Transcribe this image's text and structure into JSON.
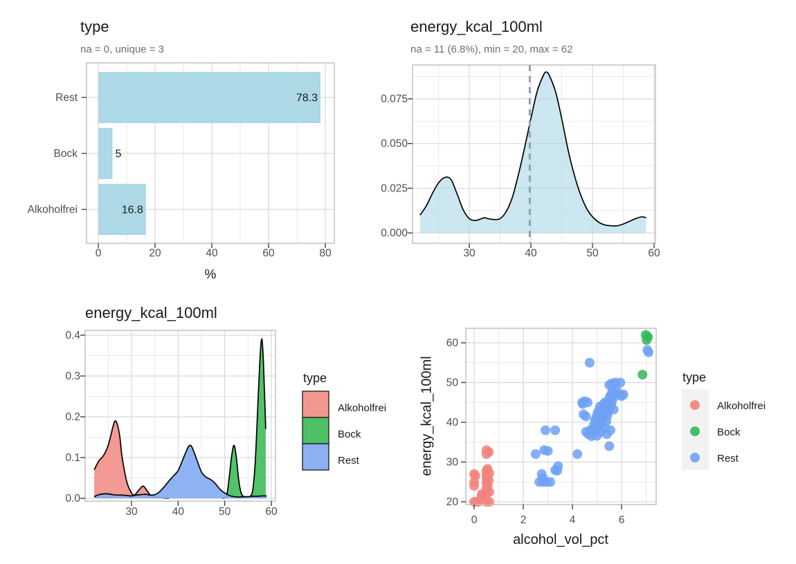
{
  "figure": {
    "background": "#ffffff",
    "style": {
      "panel_border": "#BDBDBD",
      "grid_major": "#D9D9D9",
      "grid_minor": "#E9E9E9",
      "tick_color": "#333333",
      "tick_label_color": "#4D4D4D",
      "title_color": "#1A1A1A",
      "subtitle_color": "#6E6E6E"
    }
  },
  "chart_data": [
    {
      "id": "type-bar",
      "type": "bar",
      "title": "type",
      "subtitle": "na = 0, unique = 3",
      "xlabel": "%",
      "categories": [
        "Rest",
        "Bock",
        "Alkoholfrei"
      ],
      "values": [
        78.3,
        5,
        16.8
      ],
      "value_labels": [
        "78.3",
        "5",
        "16.8"
      ],
      "x_ticks": [
        0,
        20,
        40,
        60,
        80
      ],
      "x_tick_labels": [
        "0",
        "20",
        "40",
        "60",
        "80"
      ],
      "x_minor": [
        10,
        30,
        50,
        70
      ],
      "xlim": [
        0,
        80
      ],
      "bar_color": "#ADD8E6",
      "grid": "on"
    },
    {
      "id": "energy-density",
      "type": "density",
      "title": "energy_kcal_100ml",
      "subtitle": "na = 11 (6.8%), min = 20, max = 62",
      "x_ticks": [
        30,
        40,
        50,
        60
      ],
      "x_tick_labels": [
        "30",
        "40",
        "50",
        "60"
      ],
      "x_minor": [
        25,
        35,
        45,
        55
      ],
      "y_ticks": [
        0,
        0.025,
        0.05,
        0.075
      ],
      "y_tick_labels": [
        "0.000",
        "0.025",
        "0.050",
        "0.075"
      ],
      "y_minor": [
        0.0125,
        0.0375,
        0.0625,
        0.0875
      ],
      "xlim": [
        21,
        60.5
      ],
      "ylim": [
        0,
        0.095
      ],
      "fill": "#ADD8E6",
      "fill_opacity": 0.62,
      "line_color": "#000000",
      "vline_x": 39.8,
      "vline_color": "#8A9BA8",
      "vline_style": "dashed",
      "grid": "on",
      "points": [
        [
          22,
          0.01
        ],
        [
          23,
          0.015
        ],
        [
          24,
          0.022
        ],
        [
          25,
          0.028
        ],
        [
          26,
          0.031
        ],
        [
          27,
          0.03
        ],
        [
          28,
          0.022
        ],
        [
          29,
          0.013
        ],
        [
          30,
          0.008
        ],
        [
          31,
          0.007
        ],
        [
          32,
          0.008
        ],
        [
          32.5,
          0.0085
        ],
        [
          33,
          0.008
        ],
        [
          34,
          0.0075
        ],
        [
          35,
          0.008
        ],
        [
          36,
          0.012
        ],
        [
          37,
          0.02
        ],
        [
          38,
          0.033
        ],
        [
          39,
          0.048
        ],
        [
          40,
          0.064
        ],
        [
          41,
          0.079
        ],
        [
          42,
          0.088
        ],
        [
          42.5,
          0.09
        ],
        [
          43,
          0.088
        ],
        [
          44,
          0.079
        ],
        [
          45,
          0.064
        ],
        [
          46,
          0.047
        ],
        [
          47,
          0.033
        ],
        [
          48,
          0.022
        ],
        [
          49,
          0.014
        ],
        [
          50,
          0.009
        ],
        [
          51,
          0.006
        ],
        [
          52,
          0.0045
        ],
        [
          53,
          0.004
        ],
        [
          54,
          0.004
        ],
        [
          55,
          0.005
        ],
        [
          56,
          0.0065
        ],
        [
          57,
          0.008
        ],
        [
          58,
          0.009
        ],
        [
          58.7,
          0.0085
        ]
      ]
    },
    {
      "id": "energy-density-by-type",
      "type": "density-multi",
      "title": "energy_kcal_100ml",
      "legend_title": "type",
      "x_ticks": [
        30,
        40,
        50,
        60
      ],
      "x_tick_labels": [
        "30",
        "40",
        "50",
        "60"
      ],
      "x_minor": [
        25,
        35,
        45,
        55
      ],
      "y_ticks": [
        0,
        0.1,
        0.2,
        0.3,
        0.4
      ],
      "y_tick_labels": [
        "0.0",
        "0.1",
        "0.2",
        "0.3",
        "0.4"
      ],
      "y_minor": [
        0.05,
        0.15,
        0.25,
        0.35
      ],
      "xlim": [
        21,
        60.5
      ],
      "ylim": [
        0,
        0.41
      ],
      "grid": "on",
      "series": [
        {
          "name": "Alkoholfrei",
          "fill": "#F1918A",
          "points": [
            [
              22,
              0.07
            ],
            [
              23,
              0.092
            ],
            [
              24,
              0.105
            ],
            [
              25,
              0.13
            ],
            [
              26,
              0.175
            ],
            [
              26.5,
              0.19
            ],
            [
              27,
              0.18
            ],
            [
              27.5,
              0.15
            ],
            [
              28,
              0.1
            ],
            [
              29,
              0.04
            ],
            [
              30,
              0.013
            ],
            [
              30.5,
              0.008
            ],
            [
              31,
              0.012
            ],
            [
              32,
              0.026
            ],
            [
              32.5,
              0.03
            ],
            [
              33,
              0.024
            ],
            [
              34,
              0.009
            ],
            [
              35,
              0.004
            ],
            [
              36,
              0.002
            ],
            [
              37,
              0.001
            ],
            [
              38,
              0
            ]
          ]
        },
        {
          "name": "Bock",
          "fill": "#43BD5E",
          "points": [
            [
              49.5,
              0
            ],
            [
              50,
              0.002
            ],
            [
              50.5,
              0.012
            ],
            [
              51,
              0.055
            ],
            [
              51.5,
              0.105
            ],
            [
              52,
              0.13
            ],
            [
              52.5,
              0.1
            ],
            [
              53,
              0.045
            ],
            [
              53.5,
              0.014
            ],
            [
              54,
              0.005
            ],
            [
              54.5,
              0.002
            ],
            [
              55,
              0.002
            ],
            [
              55.5,
              0.005
            ],
            [
              56,
              0.02
            ],
            [
              56.5,
              0.08
            ],
            [
              57,
              0.2
            ],
            [
              57.5,
              0.33
            ],
            [
              57.9,
              0.39
            ],
            [
              58.2,
              0.36
            ],
            [
              58.5,
              0.27
            ],
            [
              58.8,
              0.17
            ]
          ]
        },
        {
          "name": "Rest",
          "fill": "#86ACF1",
          "points": [
            [
              22,
              0.004
            ],
            [
              23,
              0.009
            ],
            [
              24,
              0.011
            ],
            [
              25,
              0.011
            ],
            [
              26,
              0.009
            ],
            [
              27,
              0.008
            ],
            [
              28,
              0.008
            ],
            [
              29,
              0.007
            ],
            [
              30,
              0.006
            ],
            [
              31,
              0.008
            ],
            [
              32,
              0.009
            ],
            [
              33,
              0.01
            ],
            [
              34,
              0.008
            ],
            [
              35,
              0.009
            ],
            [
              36,
              0.016
            ],
            [
              37,
              0.028
            ],
            [
              38,
              0.042
            ],
            [
              39,
              0.055
            ],
            [
              40,
              0.068
            ],
            [
              41,
              0.095
            ],
            [
              42,
              0.122
            ],
            [
              42.5,
              0.13
            ],
            [
              43,
              0.125
            ],
            [
              44,
              0.095
            ],
            [
              45,
              0.065
            ],
            [
              46,
              0.052
            ],
            [
              47,
              0.046
            ],
            [
              48,
              0.036
            ],
            [
              49,
              0.022
            ],
            [
              50,
              0.013
            ],
            [
              51,
              0.007
            ],
            [
              52,
              0.004
            ],
            [
              53,
              0.003
            ],
            [
              54,
              0.004
            ],
            [
              55,
              0.004
            ],
            [
              56,
              0.005
            ],
            [
              57,
              0.005
            ],
            [
              58,
              0.006
            ],
            [
              59,
              0.006
            ]
          ]
        }
      ]
    },
    {
      "id": "alcohol-energy-scatter",
      "type": "scatter",
      "xlabel": "alcohol_vol_pct",
      "ylabel": "energy_kcal_100ml",
      "legend_title": "type",
      "x_ticks": [
        0,
        2,
        4,
        6
      ],
      "x_tick_labels": [
        "0",
        "2",
        "4",
        "6"
      ],
      "x_minor": [
        1,
        3,
        5,
        7
      ],
      "y_ticks": [
        20,
        30,
        40,
        50,
        60
      ],
      "y_tick_labels": [
        "20",
        "30",
        "40",
        "50",
        "60"
      ],
      "y_minor": [
        25,
        35,
        45,
        55
      ],
      "xlim": [
        -0.35,
        7.35
      ],
      "ylim": [
        19.3,
        63.6
      ],
      "point_radius": 7,
      "point_opacity": 0.85,
      "legend_key_fill": "#F2F2F2",
      "grid": "on",
      "series": [
        {
          "name": "Alkoholfrei",
          "color": "#F2837B",
          "points": [
            [
              0,
              20
            ],
            [
              0.08,
              20
            ],
            [
              0.18,
              20
            ],
            [
              0,
              24
            ],
            [
              0,
              25
            ],
            [
              0.05,
              26.5
            ],
            [
              0,
              27
            ],
            [
              0.3,
              21.5
            ],
            [
              0.32,
              22
            ],
            [
              0.5,
              20
            ],
            [
              0.62,
              20
            ],
            [
              0.5,
              22
            ],
            [
              0.62,
              22.5
            ],
            [
              0.5,
              23.5
            ],
            [
              0.55,
              24
            ],
            [
              0.5,
              24.8
            ],
            [
              0.6,
              25.3
            ],
            [
              0.5,
              25.8
            ],
            [
              0.55,
              26.3
            ],
            [
              0.5,
              26.8
            ],
            [
              0.62,
              27.2
            ],
            [
              0.5,
              27.8
            ],
            [
              0.55,
              28.3
            ],
            [
              0.5,
              32
            ],
            [
              0.6,
              32.5
            ],
            [
              0.5,
              33
            ]
          ]
        },
        {
          "name": "Bock",
          "color": "#31B858",
          "points": [
            [
              6.85,
              52
            ],
            [
              6.98,
              62
            ],
            [
              7.02,
              60.7
            ],
            [
              7.08,
              61.5
            ]
          ]
        },
        {
          "name": "Rest",
          "color": "#6FA1F4",
          "points": [
            [
              2.5,
              32
            ],
            [
              2.85,
              33
            ],
            [
              3.0,
              32.8
            ],
            [
              2.9,
              38
            ],
            [
              3.3,
              38
            ],
            [
              2.65,
              25
            ],
            [
              2.8,
              25
            ],
            [
              2.95,
              25
            ],
            [
              3.1,
              25
            ],
            [
              2.8,
              26
            ],
            [
              2.75,
              27
            ],
            [
              3.3,
              28
            ],
            [
              3.42,
              29
            ],
            [
              3.38,
              27.8
            ],
            [
              4.2,
              32
            ],
            [
              4.7,
              55
            ],
            [
              5.5,
              34
            ],
            [
              7.05,
              58.2
            ],
            [
              7.1,
              57.6
            ],
            [
              4.4,
              45
            ],
            [
              4.5,
              45.3
            ],
            [
              4.62,
              45
            ],
            [
              4.45,
              42
            ],
            [
              4.55,
              41.5
            ],
            [
              4.55,
              37.6
            ],
            [
              4.65,
              37
            ],
            [
              4.72,
              38
            ],
            [
              4.78,
              36.5
            ],
            [
              4.82,
              38.4
            ],
            [
              4.86,
              37.6
            ],
            [
              4.88,
              39.4
            ],
            [
              4.92,
              40.6
            ],
            [
              4.95,
              38.2
            ],
            [
              4.98,
              41.4
            ],
            [
              5.0,
              39
            ],
            [
              5.02,
              42.4
            ],
            [
              5.05,
              40.2
            ],
            [
              5.08,
              43
            ],
            [
              5.1,
              41
            ],
            [
              5.12,
              44
            ],
            [
              5.15,
              39.6
            ],
            [
              5.18,
              42
            ],
            [
              5.2,
              40.6
            ],
            [
              5.22,
              43.4
            ],
            [
              5.25,
              41.2
            ],
            [
              5.28,
              44.6
            ],
            [
              5.3,
              42.2
            ],
            [
              5.32,
              45
            ],
            [
              5.35,
              43
            ],
            [
              5.38,
              40.2
            ],
            [
              5.4,
              44
            ],
            [
              5.42,
              41.6
            ],
            [
              5.45,
              42.6
            ],
            [
              5.48,
              45.4
            ],
            [
              5.5,
              43.6
            ],
            [
              5.52,
              46.4
            ],
            [
              5.55,
              44.2
            ],
            [
              5.58,
              47
            ],
            [
              5.6,
              45
            ],
            [
              5.62,
              48
            ],
            [
              5.65,
              46
            ],
            [
              5.68,
              43.2
            ],
            [
              5.7,
              47.4
            ],
            [
              5.75,
              50
            ],
            [
              5.78,
              48.4
            ],
            [
              5.85,
              47
            ],
            [
              5.95,
              50
            ],
            [
              6.0,
              46.6
            ],
            [
              6.08,
              47
            ],
            [
              5.6,
              49.8
            ],
            [
              5.5,
              49.4
            ],
            [
              4.42,
              44.6
            ],
            [
              5.0,
              36.6
            ],
            [
              5.15,
              37.6
            ],
            [
              5.3,
              38.6
            ],
            [
              5.55,
              38
            ],
            [
              5.4,
              37
            ]
          ]
        }
      ]
    }
  ]
}
